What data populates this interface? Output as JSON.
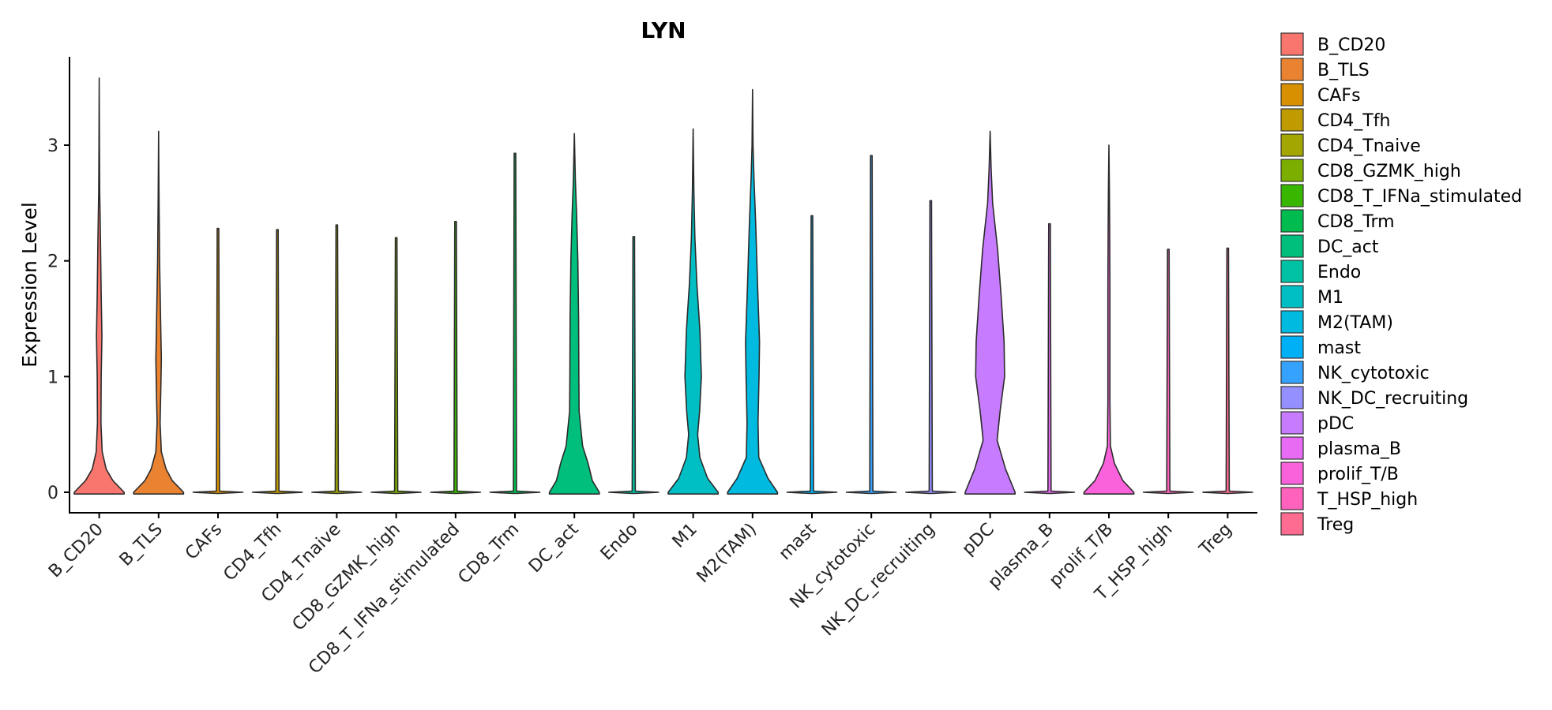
{
  "chart_data": {
    "type": "violin",
    "title": "LYN",
    "xlabel": "",
    "ylabel": "Expression Level",
    "ylim": [
      -0.25,
      3.8
    ],
    "yticks": [
      0,
      1,
      2,
      3
    ],
    "categories": [
      "B_CD20",
      "B_TLS",
      "CAFs",
      "CD4_Tfh",
      "CD4_Tnaive",
      "CD8_GZMK_high",
      "CD8_T_IFNa_stimulated",
      "CD8_Trm",
      "DC_act",
      "Endo",
      "M1",
      "M2(TAM)",
      "mast",
      "NK_cytotoxic",
      "NK_DC_recruiting",
      "pDC",
      "plasma_B",
      "prolif_T/B",
      "T_HSP_high",
      "Treg"
    ],
    "colors": [
      "#F8766D",
      "#EA8331",
      "#D89000",
      "#C09B00",
      "#A3A500",
      "#7CAE00",
      "#39B600",
      "#00BB4E",
      "#00BF7D",
      "#00C1A3",
      "#00BFC4",
      "#00BAE0",
      "#00B0F6",
      "#35A2FF",
      "#9590FF",
      "#C77CFF",
      "#E76BF3",
      "#FA62DB",
      "#FF62BC",
      "#FF6C91"
    ],
    "max_values": [
      3.58,
      3.12,
      2.28,
      2.27,
      2.31,
      2.2,
      2.34,
      2.93,
      3.1,
      2.21,
      3.14,
      3.48,
      2.39,
      2.91,
      2.52,
      3.12,
      2.32,
      3.0,
      2.1,
      2.11
    ],
    "density_profiles": [
      [
        [
          0,
          1.0
        ],
        [
          0.1,
          0.55
        ],
        [
          0.2,
          0.28
        ],
        [
          0.35,
          0.12
        ],
        [
          0.6,
          0.07
        ],
        [
          1.0,
          0.08
        ],
        [
          1.35,
          0.11
        ],
        [
          1.7,
          0.08
        ],
        [
          2.2,
          0.05
        ],
        [
          2.6,
          0.02
        ],
        [
          3.0,
          0.01
        ],
        [
          3.58,
          0.0
        ]
      ],
      [
        [
          0,
          1.0
        ],
        [
          0.1,
          0.55
        ],
        [
          0.2,
          0.3
        ],
        [
          0.35,
          0.11
        ],
        [
          0.6,
          0.06
        ],
        [
          0.9,
          0.09
        ],
        [
          1.15,
          0.11
        ],
        [
          1.5,
          0.08
        ],
        [
          2.0,
          0.04
        ],
        [
          2.6,
          0.015
        ],
        [
          3.12,
          0.0
        ]
      ],
      [
        [
          0,
          1.0
        ],
        [
          0.02,
          0.04
        ],
        [
          0.1,
          0.02
        ],
        [
          2.28,
          0.0
        ]
      ],
      [
        [
          0,
          1.0
        ],
        [
          0.02,
          0.04
        ],
        [
          0.1,
          0.02
        ],
        [
          2.27,
          0.0
        ]
      ],
      [
        [
          0,
          1.0
        ],
        [
          0.02,
          0.04
        ],
        [
          0.1,
          0.02
        ],
        [
          2.31,
          0.0
        ]
      ],
      [
        [
          0,
          1.0
        ],
        [
          0.02,
          0.04
        ],
        [
          0.1,
          0.02
        ],
        [
          2.2,
          0.0
        ]
      ],
      [
        [
          0,
          1.0
        ],
        [
          0.02,
          0.04
        ],
        [
          0.1,
          0.02
        ],
        [
          2.34,
          0.0
        ]
      ],
      [
        [
          0,
          1.0
        ],
        [
          0.02,
          0.04
        ],
        [
          0.1,
          0.02
        ],
        [
          2.93,
          0.0
        ]
      ],
      [
        [
          0,
          1.0
        ],
        [
          0.1,
          0.72
        ],
        [
          0.25,
          0.55
        ],
        [
          0.4,
          0.33
        ],
        [
          0.7,
          0.19
        ],
        [
          1.0,
          0.18
        ],
        [
          1.5,
          0.17
        ],
        [
          2.0,
          0.14
        ],
        [
          2.4,
          0.09
        ],
        [
          2.7,
          0.04
        ],
        [
          3.1,
          0.0
        ]
      ],
      [
        [
          0,
          1.0
        ],
        [
          0.02,
          0.04
        ],
        [
          0.1,
          0.02
        ],
        [
          2.21,
          0.0
        ]
      ],
      [
        [
          0,
          1.0
        ],
        [
          0.12,
          0.58
        ],
        [
          0.3,
          0.27
        ],
        [
          0.5,
          0.18
        ],
        [
          0.7,
          0.26
        ],
        [
          1.0,
          0.33
        ],
        [
          1.4,
          0.27
        ],
        [
          1.8,
          0.15
        ],
        [
          2.2,
          0.07
        ],
        [
          2.6,
          0.03
        ],
        [
          3.14,
          0.0
        ]
      ],
      [
        [
          0,
          1.0
        ],
        [
          0.12,
          0.62
        ],
        [
          0.3,
          0.25
        ],
        [
          0.6,
          0.22
        ],
        [
          1.0,
          0.26
        ],
        [
          1.3,
          0.28
        ],
        [
          1.8,
          0.2
        ],
        [
          2.3,
          0.13
        ],
        [
          2.7,
          0.06
        ],
        [
          3.0,
          0.02
        ],
        [
          3.48,
          0.0
        ]
      ],
      [
        [
          0,
          1.0
        ],
        [
          0.02,
          0.04
        ],
        [
          0.1,
          0.02
        ],
        [
          2.39,
          0.0
        ]
      ],
      [
        [
          0,
          1.0
        ],
        [
          0.02,
          0.04
        ],
        [
          0.1,
          0.02
        ],
        [
          2.91,
          0.0
        ]
      ],
      [
        [
          0,
          1.0
        ],
        [
          0.02,
          0.04
        ],
        [
          0.1,
          0.02
        ],
        [
          2.52,
          0.0
        ]
      ],
      [
        [
          0,
          1.0
        ],
        [
          0.2,
          0.62
        ],
        [
          0.45,
          0.28
        ],
        [
          0.7,
          0.4
        ],
        [
          1.0,
          0.58
        ],
        [
          1.3,
          0.56
        ],
        [
          1.7,
          0.44
        ],
        [
          2.1,
          0.3
        ],
        [
          2.5,
          0.1
        ],
        [
          2.8,
          0.04
        ],
        [
          3.12,
          0.0
        ]
      ],
      [
        [
          0,
          1.0
        ],
        [
          0.02,
          0.04
        ],
        [
          0.1,
          0.02
        ],
        [
          2.32,
          0.0
        ]
      ],
      [
        [
          0,
          1.0
        ],
        [
          0.1,
          0.56
        ],
        [
          0.25,
          0.22
        ],
        [
          0.4,
          0.06
        ],
        [
          0.8,
          0.04
        ],
        [
          1.3,
          0.04
        ],
        [
          1.8,
          0.04
        ],
        [
          2.3,
          0.03
        ],
        [
          2.6,
          0.02
        ],
        [
          3.0,
          0.0
        ]
      ],
      [
        [
          0,
          1.0
        ],
        [
          0.02,
          0.04
        ],
        [
          0.1,
          0.02
        ],
        [
          2.1,
          0.0
        ]
      ],
      [
        [
          0,
          1.0
        ],
        [
          0.02,
          0.04
        ],
        [
          0.1,
          0.02
        ],
        [
          2.11,
          0.0
        ]
      ]
    ],
    "legend": [
      "B_CD20",
      "B_TLS",
      "CAFs",
      "CD4_Tfh",
      "CD4_Tnaive",
      "CD8_GZMK_high",
      "CD8_T_IFNa_stimulated",
      "CD8_Trm",
      "DC_act",
      "Endo",
      "M1",
      "M2(TAM)",
      "mast",
      "NK_cytotoxic",
      "NK_DC_recruiting",
      "pDC",
      "plasma_B",
      "prolif_T/B",
      "T_HSP_high",
      "Treg"
    ],
    "legend_position": "right",
    "grid": false
  }
}
